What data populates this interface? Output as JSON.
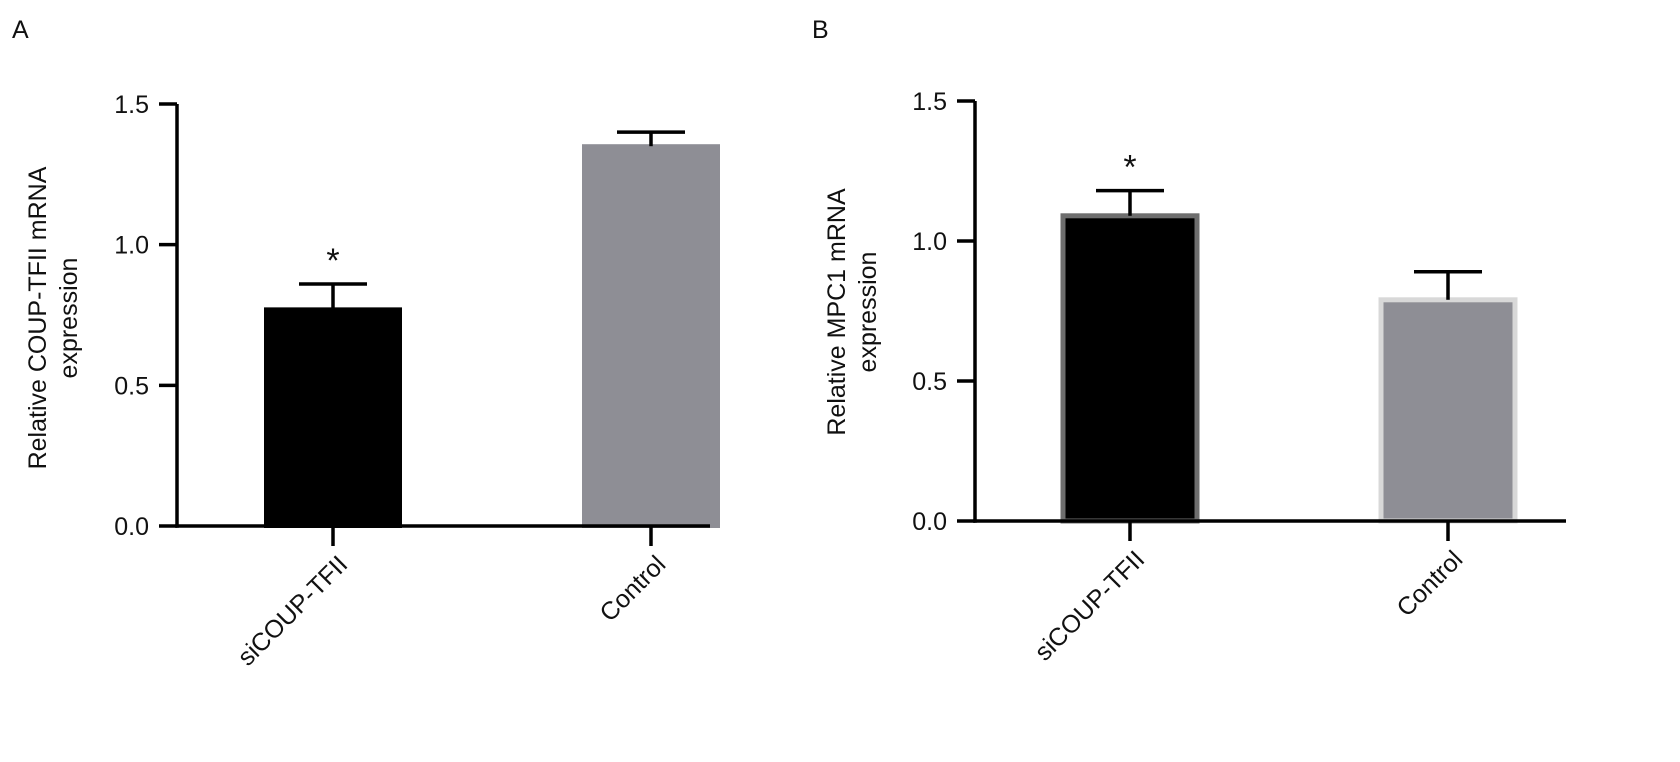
{
  "chart_data": [
    {
      "panel_label": "A",
      "type": "bar",
      "categories": [
        "siCOUP-TFII",
        "Control"
      ],
      "values": [
        0.77,
        1.35
      ],
      "error": [
        0.09,
        0.05
      ],
      "significance": [
        "*",
        ""
      ],
      "bar_colors": [
        "#000000",
        "#8e8e95"
      ],
      "ylabel_lines": [
        "Relative COUP-TFII mRNA",
        "expression"
      ],
      "ylim": [
        0,
        1.5
      ],
      "yticks": [
        "0.0",
        "0.5",
        "1.0",
        "1.5"
      ],
      "grid": false
    },
    {
      "panel_label": "B",
      "type": "bar",
      "categories": [
        "siCOUP-TFII",
        "Control"
      ],
      "values": [
        1.09,
        0.79
      ],
      "error": [
        0.09,
        0.1
      ],
      "significance": [
        "*",
        ""
      ],
      "bar_colors": [
        "#000000",
        "#8e8e95"
      ],
      "bar_outline_colors": [
        "#6e6e6e",
        "#d8d8d8"
      ],
      "ylabel_lines": [
        "Relative MPC1 mRNA",
        "expression"
      ],
      "ylim": [
        0,
        1.5
      ],
      "yticks": [
        "0.0",
        "0.5",
        "1.0",
        "1.5"
      ],
      "grid": false
    }
  ]
}
